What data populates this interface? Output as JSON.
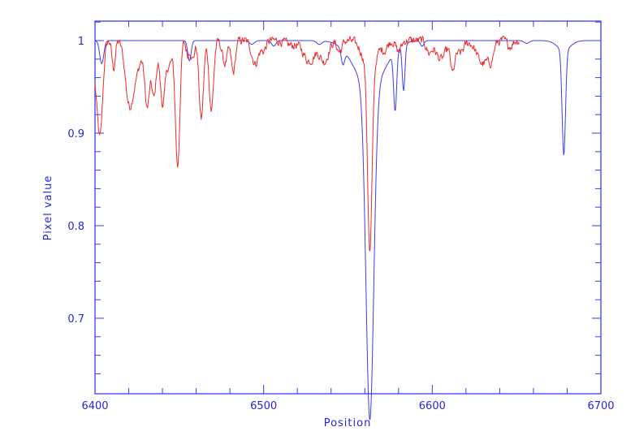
{
  "chart_data": {
    "type": "line",
    "title": "",
    "xlabel": "Position",
    "ylabel": "Pixel value",
    "xlim": [
      6400,
      6700
    ],
    "ylim": [
      0.632,
      1.025
    ],
    "x_ticks": [
      6400,
      6500,
      6600,
      6700
    ],
    "x_tick_labels": [
      "6400",
      "6500",
      "6600",
      "6700"
    ],
    "x_minor_step": 20,
    "y_ticks": [
      0.7,
      0.8,
      0.9,
      1.0
    ],
    "y_tick_labels": [
      "0.7",
      "0.8",
      "0.9",
      "1"
    ],
    "y_minor_step": 0.02,
    "grid": false,
    "legend": null,
    "colors": {
      "axes": "#3b3bf0",
      "text": "#2626d9"
    },
    "series": [
      {
        "name": "blue-spectrum",
        "color": "#3d3dea",
        "x_range": [
          6400,
          6700
        ],
        "continuum": 1.0,
        "absorption_lines": [
          {
            "center": 6404,
            "depth": 0.025,
            "width": 1.2
          },
          {
            "center": 6456,
            "depth": 0.022,
            "width": 1.0
          },
          {
            "center": 6493,
            "depth": 0.004,
            "width": 1.5
          },
          {
            "center": 6506,
            "depth": 0.006,
            "width": 1.2
          },
          {
            "center": 6533,
            "depth": 0.004,
            "width": 1.5
          },
          {
            "center": 6547,
            "depth": 0.016,
            "width": 1.0
          },
          {
            "center": 6563,
            "depth": 0.36,
            "width": 2.3
          },
          {
            "center": 6563,
            "depth": 0.05,
            "width": 9.0
          },
          {
            "center": 6578,
            "depth": 0.064,
            "width": 0.9
          },
          {
            "center": 6583,
            "depth": 0.05,
            "width": 0.8
          },
          {
            "center": 6594,
            "depth": 0.006,
            "width": 1.0
          },
          {
            "center": 6656,
            "depth": 0.003,
            "width": 1.5
          },
          {
            "center": 6678,
            "depth": 0.114,
            "width": 1.0
          },
          {
            "center": 6678,
            "depth": 0.01,
            "width": 4.0
          }
        ]
      },
      {
        "name": "red-spectrum",
        "color": "#ee2b2b",
        "x_range": [
          6400,
          6652
        ],
        "continuum": 1.0,
        "noise": 0.004,
        "absorption_lines": [
          {
            "center": 6400,
            "depth": 0.03,
            "width": 1.5
          },
          {
            "center": 6403,
            "depth": 0.1,
            "width": 1.6
          },
          {
            "center": 6411,
            "depth": 0.03,
            "width": 1.0
          },
          {
            "center": 6420,
            "depth": 0.055,
            "width": 2.2
          },
          {
            "center": 6424,
            "depth": 0.035,
            "width": 3.0
          },
          {
            "center": 6431,
            "depth": 0.07,
            "width": 1.5
          },
          {
            "center": 6435,
            "depth": 0.06,
            "width": 1.3
          },
          {
            "center": 6440,
            "depth": 0.065,
            "width": 1.5
          },
          {
            "center": 6444,
            "depth": 0.025,
            "width": 2.0
          },
          {
            "center": 6449,
            "depth": 0.135,
            "width": 1.3
          },
          {
            "center": 6455,
            "depth": 0.015,
            "width": 1.0
          },
          {
            "center": 6458,
            "depth": 0.02,
            "width": 1.0
          },
          {
            "center": 6463,
            "depth": 0.085,
            "width": 1.3
          },
          {
            "center": 6469,
            "depth": 0.075,
            "width": 1.3
          },
          {
            "center": 6477,
            "depth": 0.025,
            "width": 1.5
          },
          {
            "center": 6482,
            "depth": 0.035,
            "width": 1.2
          },
          {
            "center": 6495,
            "depth": 0.025,
            "width": 2.0
          },
          {
            "center": 6500,
            "depth": 0.01,
            "width": 1.5
          },
          {
            "center": 6516,
            "depth": 0.005,
            "width": 3.0
          },
          {
            "center": 6527,
            "depth": 0.022,
            "width": 3.5
          },
          {
            "center": 6536,
            "depth": 0.022,
            "width": 2.5
          },
          {
            "center": 6545,
            "depth": 0.012,
            "width": 1.5
          },
          {
            "center": 6563,
            "depth": 0.2,
            "width": 1.3
          },
          {
            "center": 6563,
            "depth": 0.03,
            "width": 4.0
          },
          {
            "center": 6572,
            "depth": 0.008,
            "width": 1.5
          },
          {
            "center": 6580,
            "depth": 0.012,
            "width": 1.5
          },
          {
            "center": 6598,
            "depth": 0.012,
            "width": 1.5
          },
          {
            "center": 6605,
            "depth": 0.02,
            "width": 3.0
          },
          {
            "center": 6612,
            "depth": 0.03,
            "width": 1.2
          },
          {
            "center": 6616,
            "depth": 0.014,
            "width": 2.5
          },
          {
            "center": 6630,
            "depth": 0.025,
            "width": 3.5
          },
          {
            "center": 6635,
            "depth": 0.014,
            "width": 1.5
          },
          {
            "center": 6646,
            "depth": 0.006,
            "width": 1.5
          }
        ]
      }
    ]
  }
}
